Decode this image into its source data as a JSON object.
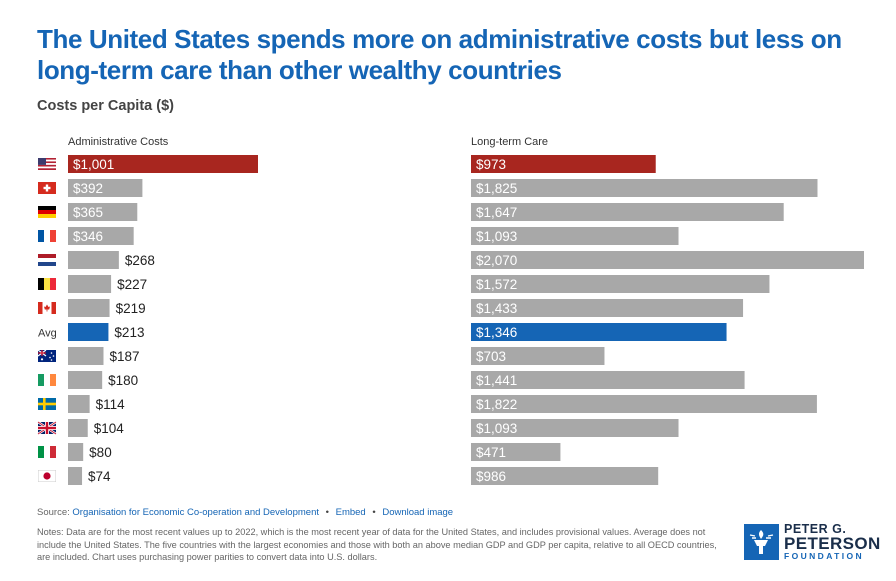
{
  "title": "The United States spends more on administrative costs but less on long-term care than other wealthy countries",
  "subtitle": "Costs per Capita ($)",
  "colors": {
    "highlight_us": "#a8261f",
    "highlight_avg": "#1565b5",
    "default_bar": "#a8a8a8",
    "title": "#1565b5"
  },
  "chart_data": {
    "type": "bar",
    "orientation": "horizontal",
    "row_labels": [
      {
        "flag": "united-states-flag",
        "text": ""
      },
      {
        "flag": "switzerland-flag",
        "text": ""
      },
      {
        "flag": "germany-flag",
        "text": ""
      },
      {
        "flag": "france-flag",
        "text": ""
      },
      {
        "flag": "netherlands-flag",
        "text": ""
      },
      {
        "flag": "belgium-flag",
        "text": ""
      },
      {
        "flag": "canada-flag",
        "text": ""
      },
      {
        "flag": "",
        "text": "Avg"
      },
      {
        "flag": "australia-flag",
        "text": ""
      },
      {
        "flag": "ireland-flag",
        "text": ""
      },
      {
        "flag": "sweden-flag",
        "text": ""
      },
      {
        "flag": "united-kingdom-flag",
        "text": ""
      },
      {
        "flag": "italy-flag",
        "text": ""
      },
      {
        "flag": "japan-flag",
        "text": ""
      }
    ],
    "highlight": [
      "us",
      "",
      "",
      "",
      "",
      "",
      "",
      "avg",
      "",
      "",
      "",
      "",
      "",
      ""
    ],
    "series": [
      {
        "name": "Administrative Costs",
        "values": [
          1001,
          392,
          365,
          346,
          268,
          227,
          219,
          213,
          187,
          180,
          114,
          104,
          80,
          74
        ],
        "labels": [
          "$1,001",
          "$392",
          "$365",
          "$346",
          "$268",
          "$227",
          "$219",
          "$213",
          "$187",
          "$180",
          "$114",
          "$104",
          "$80",
          "$74"
        ],
        "max": 1001
      },
      {
        "name": "Long-term Care",
        "values": [
          973,
          1825,
          1647,
          1093,
          2070,
          1572,
          1433,
          1346,
          703,
          1441,
          1822,
          1093,
          471,
          986
        ],
        "labels": [
          "$973",
          "$1,825",
          "$1,647",
          "$1,093",
          "$2,070",
          "$1,572",
          "$1,433",
          "$1,346",
          "$703",
          "$1,441",
          "$1,822",
          "$1,093",
          "$471",
          "$986"
        ],
        "max": 2070
      }
    ]
  },
  "footer": {
    "source_prefix": "Source:",
    "source_link": "Organisation for Economic Co-operation and Development",
    "embed_label": "Embed",
    "download_label": "Download image",
    "notes": "Notes: Data are for the most recent values up to 2022, which is the most recent year of data for the United States, and includes provisional values. Average does not include the United States. The five countries with the largest economies and those with both an above median GDP and GDP per capita, relative to all OECD countries, are included. Chart uses purchasing power parities to convert data into U.S. dollars."
  },
  "logo": {
    "line1": "PETER G.",
    "line2": "PETERSON",
    "line3": "FOUNDATION"
  }
}
